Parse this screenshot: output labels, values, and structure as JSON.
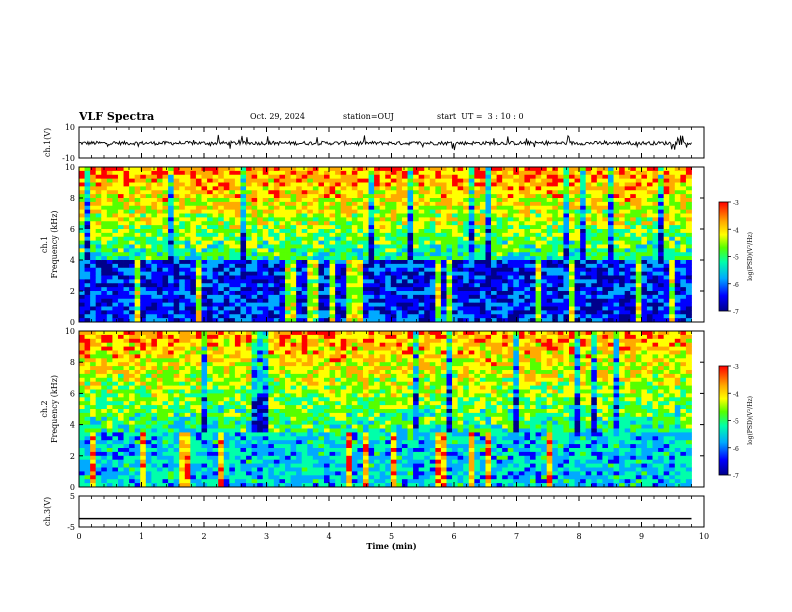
{
  "header": {
    "title": "VLF Spectra",
    "date": "Oct. 29, 2024",
    "station": "station=OUJ",
    "start_ut": "start  UT =  3 : 10 : 0"
  },
  "colors": {
    "colormap": [
      "#00008b",
      "#0000ff",
      "#00aaff",
      "#00ffaa",
      "#55ff00",
      "#ffff00",
      "#ffaa00",
      "#ff0000"
    ],
    "waveform": "#000000"
  },
  "chart_data": [
    {
      "type": "line",
      "panel": "ch1-waveform",
      "ylabel": "ch.1(V)",
      "ylim": [
        -10,
        10
      ],
      "yticks": [
        -10,
        10
      ],
      "ytick_labels": [
        "-10",
        "10"
      ],
      "xlim": [
        0,
        10
      ],
      "x_end": 9.8,
      "typical_range": [
        -2,
        1
      ],
      "baseline": 0
    },
    {
      "type": "heatmap",
      "panel": "ch1-spectrogram",
      "ylabel": "ch.1",
      "ylabel2": "Frequency (kHz)",
      "ylim": [
        0,
        10
      ],
      "yticks": [
        0,
        2,
        4,
        6,
        8,
        10
      ],
      "ytick_labels": [
        "0",
        "2",
        "4",
        "6",
        "8",
        "10"
      ],
      "xlim": [
        0,
        10
      ],
      "x_end": 9.8,
      "colorbar": {
        "label": "log(PSD)(V²/Hz)",
        "range": [
          -7,
          -3
        ],
        "ticks": [
          -7,
          -6,
          -5,
          -4,
          -3
        ],
        "tick_labels": [
          "-7",
          "-6",
          "-5",
          "-4",
          "-3"
        ]
      },
      "low_band_khz": [
        0,
        4
      ],
      "low_band_log_psd": -6.5,
      "high_band_log_psd": -3.6
    },
    {
      "type": "heatmap",
      "panel": "ch2-spectrogram",
      "ylabel": "ch.2",
      "ylabel2": "Frequency (kHz)",
      "ylim": [
        0,
        10
      ],
      "yticks": [
        0,
        2,
        4,
        6,
        8,
        10
      ],
      "ytick_labels": [
        "0",
        "2",
        "4",
        "6",
        "8",
        "10"
      ],
      "xlim": [
        0,
        10
      ],
      "x_end": 9.8,
      "colorbar": {
        "label": "log(PSD)(V²/Hz)",
        "range": [
          -7,
          -3
        ],
        "ticks": [
          -7,
          -6,
          -5,
          -4,
          -3
        ],
        "tick_labels": [
          "-7",
          "-6",
          "-5",
          "-4",
          "-3"
        ]
      },
      "low_band_khz": [
        0,
        3.5
      ],
      "low_band_log_psd": -5.8,
      "high_band_log_psd": -3.7
    },
    {
      "type": "line",
      "panel": "ch3-waveform",
      "ylabel": "ch.3(V)",
      "ylim": [
        -5,
        5
      ],
      "yticks": [
        -5,
        5
      ],
      "ytick_labels": [
        "-5",
        "5"
      ],
      "xlim": [
        0,
        10
      ],
      "x_end": 9.8,
      "constant_value": -2.3
    }
  ],
  "xaxis": {
    "label": "Time  (min)",
    "ticks": [
      0,
      1,
      2,
      3,
      4,
      5,
      6,
      7,
      8,
      9,
      10
    ],
    "tick_labels": [
      "0",
      "1",
      "2",
      "3",
      "4",
      "5",
      "6",
      "7",
      "8",
      "9",
      "10"
    ]
  }
}
